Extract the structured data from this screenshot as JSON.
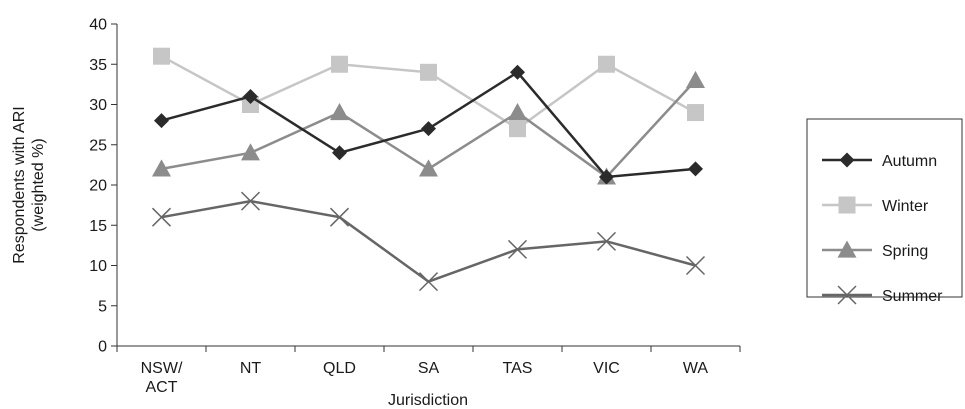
{
  "chart_data": {
    "type": "line",
    "categories": [
      "NSW/\nACT",
      "NT",
      "QLD",
      "SA",
      "TAS",
      "VIC",
      "WA"
    ],
    "xlabel": "Jurisdiction",
    "ylabel": "Respondents with ARI\n(weighted %)",
    "ylim": [
      0,
      40
    ],
    "yticks": [
      0,
      5,
      10,
      15,
      20,
      25,
      30,
      35,
      40
    ],
    "grid": false,
    "legend_position": "right",
    "series": [
      {
        "name": "Autumn",
        "values": [
          28,
          31,
          24,
          27,
          34,
          21,
          22
        ],
        "color": "#2b2b2b",
        "marker": "diamond"
      },
      {
        "name": "Winter",
        "values": [
          36,
          30,
          35,
          34,
          27,
          35,
          29
        ],
        "color": "#c6c6c6",
        "marker": "square"
      },
      {
        "name": "Spring",
        "values": [
          22,
          24,
          29,
          22,
          29,
          21,
          33
        ],
        "color": "#8c8c8c",
        "marker": "triangle"
      },
      {
        "name": "Summer",
        "values": [
          16,
          18,
          16,
          8,
          12,
          13,
          10
        ],
        "color": "#666666",
        "marker": "x"
      }
    ]
  }
}
